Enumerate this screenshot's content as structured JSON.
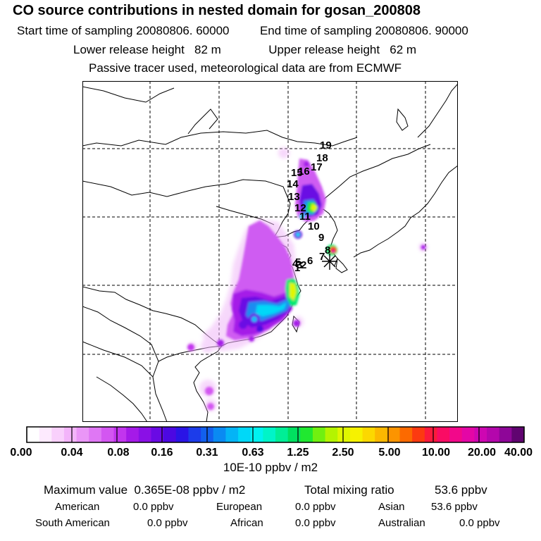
{
  "header": {
    "title": "CO  source contributions in nested domain for gosan_200808",
    "start_label": "Start time of sampling",
    "start_value": "20080806. 60000",
    "end_label": "End time of sampling",
    "end_value": "20080806. 90000",
    "lower_label": "Lower release height",
    "lower_value": "82 m",
    "upper_label": "Upper release height",
    "upper_value": "62 m",
    "note": "Passive tracer used, meteorological data are from ECMWF"
  },
  "map": {
    "trajectory_labels": [
      "1",
      "2",
      "3",
      "4",
      "5",
      "6",
      "7",
      "8",
      "9",
      "10",
      "11",
      "12",
      "13",
      "14",
      "15",
      "16",
      "17",
      "18",
      "19"
    ],
    "receptor_marker": "asterisk-icon"
  },
  "colorbar": {
    "ticks": [
      "0.00",
      "0.04",
      "0.08",
      "0.16",
      "0.31",
      "0.63",
      "1.25",
      "2.50",
      "5.00",
      "10.00",
      "20.00",
      "40.00"
    ],
    "colors": [
      "#ffffff",
      "#fdeafe",
      "#f9d0fc",
      "#f3b4fa",
      "#ea96f7",
      "#df77f4",
      "#d356f1",
      "#c235ee",
      "#a51ae8",
      "#8a10e6",
      "#6a0ae4",
      "#4c08e2",
      "#2a14e6",
      "#1c3cea",
      "#1260ee",
      "#0a8af2",
      "#04b4f6",
      "#00d8f8",
      "#00f2f0",
      "#00f4c8",
      "#00ee96",
      "#00e060",
      "#20e830",
      "#70f010",
      "#b4f400",
      "#e0f600",
      "#f6f200",
      "#fcd800",
      "#fcb800",
      "#fc9400",
      "#fc6a00",
      "#fc3a10",
      "#fc1a3c",
      "#fa0c64",
      "#f2088a",
      "#e406a6",
      "#ce06b2",
      "#b406ac",
      "#8e0698",
      "#600470"
    ],
    "unit": "10E-10 ppbv / m2"
  },
  "stats": {
    "max_label": "Maximum value",
    "max_value": "0.365E-08 ppbv / m2",
    "total_label": "Total mixing ratio",
    "total_value": "53.6 ppbv",
    "regions": [
      {
        "name": "American",
        "value": "0.0 ppbv"
      },
      {
        "name": "European",
        "value": "0.0 ppbv"
      },
      {
        "name": "Asian",
        "value": "53.6 ppbv"
      },
      {
        "name": "South American",
        "value": "0.0 ppbv"
      },
      {
        "name": "African",
        "value": "0.0 ppbv"
      },
      {
        "name": "Australian",
        "value": "0.0 ppbv"
      }
    ]
  }
}
